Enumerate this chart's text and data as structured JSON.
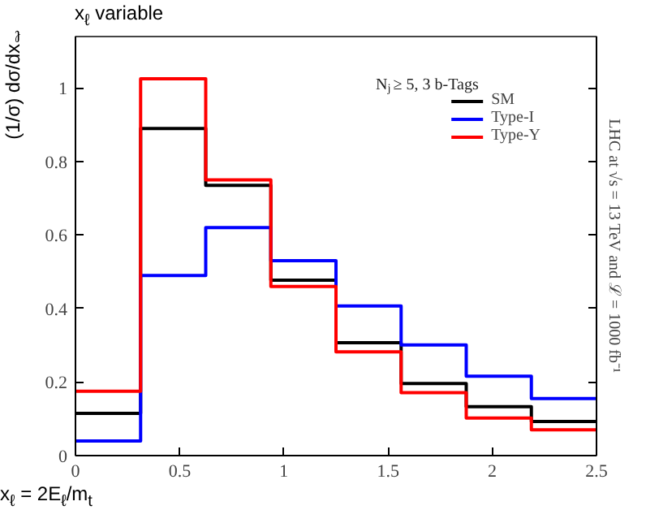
{
  "chart_data": {
    "type": "histogram",
    "title": "x$_{ℓ}$ variable",
    "xlabel": "x$_{ℓ}$ = 2E$_{ℓ}$/m$_{t}$",
    "ylabel": "(1/σ) dσ/dx$_{ℓ}$",
    "y2label": "LHC at √s = 13 TeV and ℒ = 1000 fb⁻¹",
    "legend_title": "N$_{j}$ ≥ 5, 3 b-Tags",
    "bins": [
      0,
      0.3125,
      0.625,
      0.9375,
      1.25,
      1.5625,
      1.875,
      2.1875,
      2.5
    ],
    "series": [
      {
        "name": "SM",
        "color": "#000000",
        "values": [
          0.115,
          0.89,
          0.735,
          0.477,
          0.307,
          0.196,
          0.133,
          0.093
        ]
      },
      {
        "name": "Type-I",
        "color": "#0000ff",
        "values": [
          0.04,
          0.49,
          0.62,
          0.53,
          0.407,
          0.301,
          0.216,
          0.155
        ]
      },
      {
        "name": "Type-Y",
        "color": "#ff0000",
        "values": [
          0.175,
          1.025,
          0.75,
          0.46,
          0.282,
          0.171,
          0.102,
          0.07
        ]
      }
    ],
    "xlim": [
      0,
      2.5
    ],
    "ylim": [
      0,
      1.14
    ],
    "xticks": [
      0,
      0.5,
      1,
      1.5,
      2,
      2.5
    ],
    "yticks": [
      0,
      0.2,
      0.4,
      0.6,
      0.8,
      1
    ],
    "grid": false,
    "legend": "top right"
  }
}
